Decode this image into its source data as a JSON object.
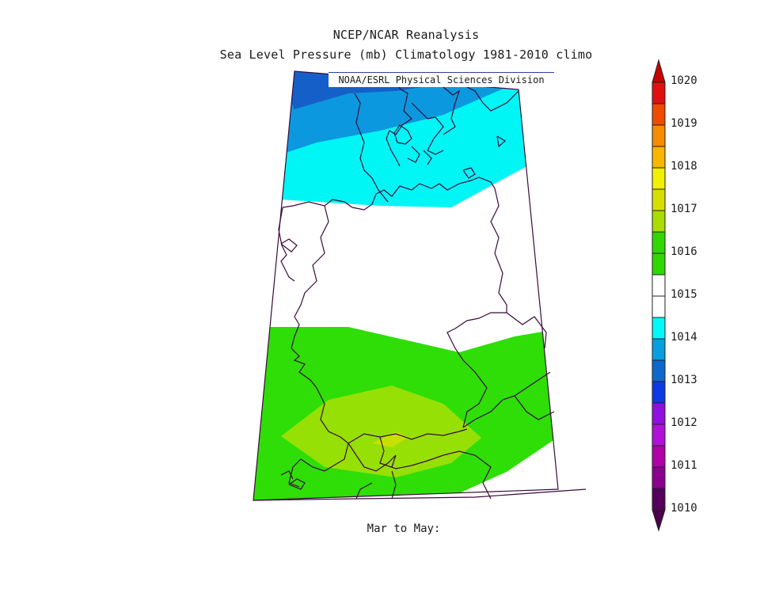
{
  "header": {
    "title_line1": "NCEP/NCAR Reanalysis",
    "title_line2": "Sea Level Pressure (mb) Climatology 1981-2010 climo",
    "credit": "NOAA/ESRL Physical Sciences Division"
  },
  "footer": {
    "period": "Mar to May:"
  },
  "map": {
    "variable": "Sea Level Pressure",
    "units": "mb",
    "regions": [
      {
        "name": "1013-1014 band",
        "color": "#1560c8"
      },
      {
        "name": "1014 band",
        "color": "#0f98de"
      },
      {
        "name": "1014-1015 band",
        "color": "#00f0f0"
      },
      {
        "name": "1015-1016 band",
        "color": "#ffffff"
      },
      {
        "name": "1016-1017 band",
        "color": "#2ede06"
      },
      {
        "name": "1017 band",
        "color": "#96e006"
      },
      {
        "name": "1017-1018 band",
        "color": "#c8e000"
      }
    ]
  },
  "colorbar": {
    "levels": [
      "1020",
      "1019",
      "1018",
      "1017",
      "1016",
      "1015",
      "1014",
      "1013",
      "1012",
      "1011",
      "1010"
    ],
    "colors": [
      "#e01010",
      "#f04a00",
      "#f68c00",
      "#f8b600",
      "#f2f000",
      "#d6e000",
      "#aadc00",
      "#30d800",
      "#ffffff",
      "#00f8f8",
      "#0a9ee0",
      "#0c68cc",
      "#0c3ae6",
      "#9010e0",
      "#b010d8",
      "#b000a8",
      "#8c0090",
      "#54005c",
      "#3a0046",
      "#c80000",
      "#4a004a"
    ]
  }
}
